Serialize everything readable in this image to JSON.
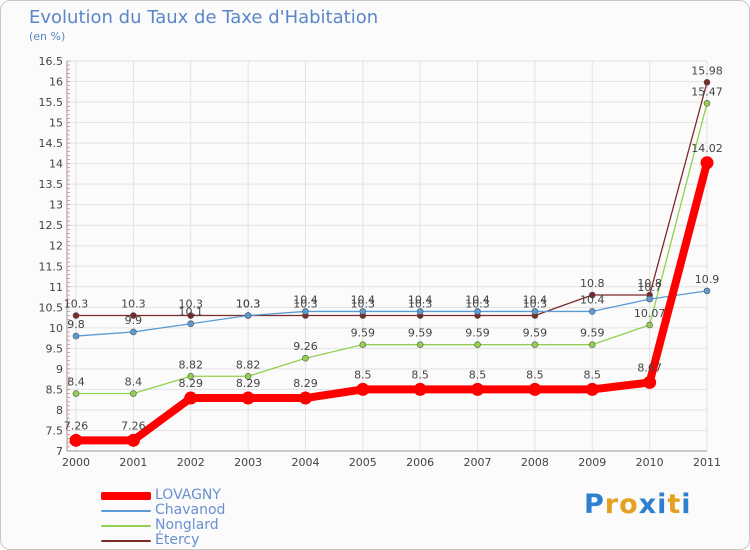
{
  "chart_data": {
    "type": "line",
    "title": "Evolution du Taux de Taxe d'Habitation",
    "unit_label": "(en %)",
    "xlabel": "",
    "ylabel": "",
    "categories": [
      "2000",
      "2001",
      "2002",
      "2003",
      "2004",
      "2005",
      "2006",
      "2007",
      "2008",
      "2009",
      "2010",
      "2011"
    ],
    "ylim": [
      7,
      16.5
    ],
    "yticks": [
      "7",
      "7.5",
      "8",
      "8.5",
      "9",
      "9.5",
      "10",
      "10.5",
      "11",
      "11.5",
      "12",
      "12.5",
      "13",
      "13.5",
      "14",
      "14.5",
      "15",
      "15.5",
      "16",
      "16.5"
    ],
    "series": [
      {
        "name": "LOVAGNY",
        "color": "#ff0000",
        "values": [
          7.26,
          7.26,
          8.29,
          8.29,
          8.29,
          8.5,
          8.5,
          8.5,
          8.5,
          8.5,
          8.67,
          14.02
        ],
        "labels": [
          "7.26",
          "7.26",
          "8.29",
          "8.29",
          "8.29",
          "8.5",
          "8.5",
          "8.5",
          "8.5",
          "8.5",
          "8.67",
          "14.02"
        ]
      },
      {
        "name": "Chavanod",
        "color": "#5b9bd5",
        "values": [
          9.8,
          9.9,
          10.1,
          10.3,
          10.4,
          10.4,
          10.4,
          10.4,
          10.4,
          10.4,
          10.7,
          10.9
        ],
        "labels": [
          "9.8",
          "9.9",
          "10.1",
          "10.3",
          "10.4",
          "10.4",
          "10.4",
          "10.4",
          "10.4",
          "10.4",
          "10.7",
          "10.9"
        ]
      },
      {
        "name": "Nonglard",
        "color": "#92d050",
        "values": [
          8.4,
          8.4,
          8.82,
          8.82,
          9.26,
          9.59,
          9.59,
          9.59,
          9.59,
          9.59,
          10.07,
          15.47
        ],
        "labels": [
          "8.4",
          "8.4",
          "8.82",
          "8.82",
          "9.26",
          "9.59",
          "9.59",
          "9.59",
          "9.59",
          "9.59",
          "10.07",
          "15.47"
        ]
      },
      {
        "name": "Étercy",
        "color": "#7b2a2a",
        "values": [
          10.3,
          10.3,
          10.3,
          10.3,
          10.3,
          10.3,
          10.3,
          10.3,
          10.3,
          10.8,
          10.8,
          15.98
        ],
        "labels": [
          "10.3",
          "10.3",
          "10.3",
          "10.3",
          "10.3",
          "10.3",
          "10.3",
          "10.3",
          "10.3",
          "10.8",
          "10.8",
          "15.98"
        ]
      }
    ],
    "legend_position": "bottom-left"
  },
  "logo": {
    "letters": [
      "P",
      "r",
      "o",
      "x",
      "i",
      "t",
      "i"
    ],
    "colors": [
      "#2f7fd0",
      "#e6a020",
      "#e6a020",
      "#2f7fd0",
      "#2f7fd0",
      "#e6a020",
      "#2f7fd0"
    ]
  }
}
